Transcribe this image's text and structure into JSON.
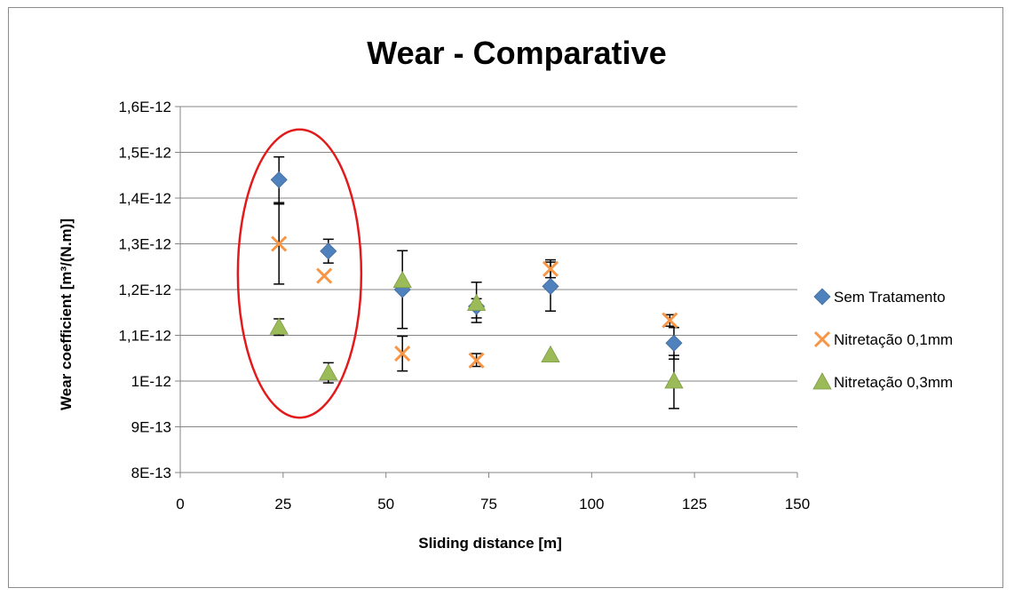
{
  "chart_data": {
    "type": "scatter",
    "title": "Wear - Comparative",
    "xlabel": "Sliding distance [m]",
    "ylabel": "Wear coefficient [m³/(N.m)]",
    "xlim": [
      0,
      150
    ],
    "ylim": [
      8e-13,
      1.6e-12
    ],
    "x_ticks": [
      {
        "v": 0,
        "label": "0"
      },
      {
        "v": 25,
        "label": "25"
      },
      {
        "v": 50,
        "label": "50"
      },
      {
        "v": 75,
        "label": "75"
      },
      {
        "v": 100,
        "label": "100"
      },
      {
        "v": 125,
        "label": "125"
      },
      {
        "v": 150,
        "label": "150"
      }
    ],
    "y_ticks": [
      {
        "v": 8e-13,
        "label": "8E-13"
      },
      {
        "v": 9e-13,
        "label": "9E-13"
      },
      {
        "v": 1e-12,
        "label": "1E-12"
      },
      {
        "v": 1.1e-12,
        "label": "1,1E-12"
      },
      {
        "v": 1.2e-12,
        "label": "1,2E-12"
      },
      {
        "v": 1.3e-12,
        "label": "1,3E-12"
      },
      {
        "v": 1.4e-12,
        "label": "1,4E-12"
      },
      {
        "v": 1.5e-12,
        "label": "1,5E-12"
      },
      {
        "v": 1.6e-12,
        "label": "1,6E-12"
      }
    ],
    "grid": "horizontal",
    "legend_position": "right",
    "series": [
      {
        "name": "Sem Tratamento",
        "marker": "diamond",
        "color": "#4f81bd",
        "points": [
          {
            "x": 24,
            "y": 1.44e-12,
            "err_high": 1.49e-12,
            "err_low": 1.39e-12
          },
          {
            "x": 36,
            "y": 1.284e-12,
            "err_high": 1.31e-12,
            "err_low": 1.258e-12
          },
          {
            "x": 54,
            "y": 1.2e-12,
            "err_high": 1.285e-12,
            "err_low": 1.115e-12
          },
          {
            "x": 72,
            "y": 1.163e-12,
            "err_high": 1.18e-12,
            "err_low": 1.138e-12
          },
          {
            "x": 90,
            "y": 1.207e-12,
            "err_high": 1.26e-12,
            "err_low": 1.153e-12
          },
          {
            "x": 120,
            "y": 1.083e-12,
            "err_high": 1.117e-12,
            "err_low": 1.048e-12
          }
        ]
      },
      {
        "name": "Nitretação 0,1mm",
        "marker": "x",
        "color": "#f79646",
        "points": [
          {
            "x": 24,
            "y": 1.3e-12,
            "err_high": 1.387e-12,
            "err_low": 1.212e-12
          },
          {
            "x": 35,
            "y": 1.23e-12,
            "err_high": null,
            "err_low": null
          },
          {
            "x": 54,
            "y": 1.06e-12,
            "err_high": 1.098e-12,
            "err_low": 1.022e-12
          },
          {
            "x": 72,
            "y": 1.045e-12,
            "err_high": 1.06e-12,
            "err_low": 1.032e-12
          },
          {
            "x": 90,
            "y": 1.245e-12,
            "err_high": 1.265e-12,
            "err_low": 1.226e-12
          },
          {
            "x": 119,
            "y": 1.133e-12,
            "err_high": 1.145e-12,
            "err_low": 1.12e-12
          }
        ]
      },
      {
        "name": "Nitretação 0,3mm",
        "marker": "triangle",
        "color": "#9bbb59",
        "points": [
          {
            "x": 24,
            "y": 1.118e-12,
            "err_high": 1.136e-12,
            "err_low": 1.1e-12
          },
          {
            "x": 36,
            "y": 1.018e-12,
            "err_high": 1.04e-12,
            "err_low": 9.96e-13
          },
          {
            "x": 54,
            "y": 1.22e-12,
            "err_high": null,
            "err_low": null
          },
          {
            "x": 72,
            "y": 1.17e-12,
            "err_high": 1.216e-12,
            "err_low": 1.128e-12
          },
          {
            "x": 90,
            "y": 1.057e-12,
            "err_high": null,
            "err_low": null
          },
          {
            "x": 120,
            "y": 1e-12,
            "err_high": 1.056e-12,
            "err_low": 9.4e-13
          }
        ]
      }
    ],
    "annotations": [
      {
        "type": "ellipse",
        "color": "#e31a1c",
        "center_x": 29,
        "center_y": 1.235e-12,
        "x_radius": 15,
        "y_radius": 3.15e-13
      }
    ]
  }
}
